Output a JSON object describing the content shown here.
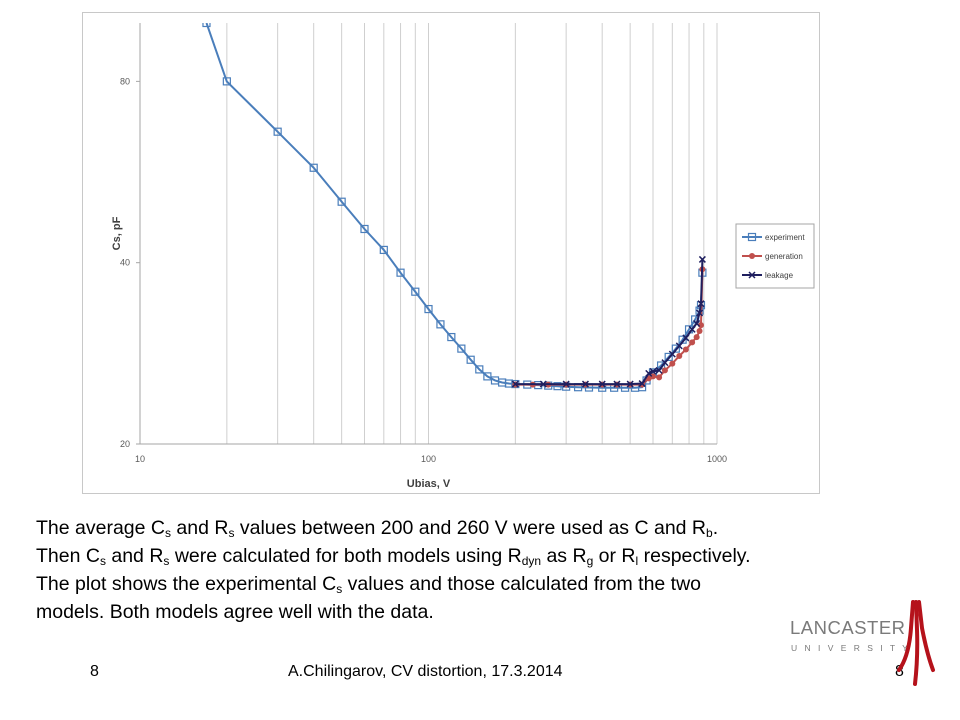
{
  "chart_data": {
    "type": "line",
    "xlabel": "Ubias, V",
    "ylabel": "Cs, pF",
    "xscale": "log",
    "yscale": "log",
    "xlim": [
      10,
      1000
    ],
    "ylim": [
      20,
      100
    ],
    "x_ticks": [
      "10",
      "100",
      "1000"
    ],
    "y_ticks": [
      "20",
      "40",
      "80"
    ],
    "grid": "vertical minor and major",
    "legend_position": "right",
    "series": [
      {
        "name": "experiment",
        "color": "#4a7ebb",
        "marker": "square-open",
        "x": [
          17,
          20,
          30,
          40,
          50,
          60,
          70,
          80,
          90,
          100,
          110,
          120,
          130,
          140,
          150,
          160,
          170,
          180,
          190,
          200,
          220,
          240,
          260,
          280,
          300,
          330,
          360,
          400,
          440,
          480,
          520,
          550,
          570,
          600,
          640,
          680,
          720,
          760,
          800,
          840,
          870,
          880,
          890
        ],
        "y": [
          100,
          80,
          66,
          57.5,
          50.5,
          45.5,
          42,
          38.5,
          35.8,
          33.5,
          31.6,
          30.1,
          28.8,
          27.6,
          26.6,
          25.9,
          25.5,
          25.3,
          25.2,
          25.15,
          25.1,
          25.05,
          25.0,
          24.95,
          24.9,
          24.85,
          24.82,
          24.8,
          24.8,
          24.8,
          24.8,
          24.85,
          25.5,
          26.3,
          27.0,
          27.9,
          28.8,
          29.8,
          31.0,
          32.2,
          33.3,
          34.0,
          38.5
        ]
      },
      {
        "name": "generation",
        "color": "#c0504d",
        "marker": "circle-filled",
        "x": [
          200,
          230,
          260,
          300,
          350,
          400,
          450,
          500,
          550,
          580,
          600,
          630,
          660,
          700,
          740,
          780,
          820,
          850,
          870,
          880,
          890
        ],
        "y": [
          25.1,
          25.1,
          25.1,
          25.1,
          25.1,
          25.1,
          25.1,
          25.1,
          25.1,
          25.7,
          25.9,
          25.8,
          26.5,
          27.2,
          28.0,
          28.7,
          29.5,
          30.1,
          30.8,
          31.5,
          39.0
        ]
      },
      {
        "name": "leakage",
        "color": "#1f1f5f",
        "marker": "x",
        "x": [
          200,
          250,
          300,
          350,
          400,
          450,
          500,
          550,
          580,
          600,
          630,
          660,
          700,
          740,
          780,
          820,
          850,
          870,
          880,
          890
        ],
        "y": [
          25.15,
          25.15,
          25.15,
          25.15,
          25.15,
          25.15,
          25.15,
          25.2,
          26.2,
          26.4,
          26.5,
          27.3,
          28.2,
          29.1,
          30.0,
          31.0,
          31.7,
          33.0,
          34.2,
          40.5
        ]
      }
    ]
  },
  "caption": {
    "line1": {
      "t1": "The average C",
      "s1": "s",
      "t2": " and R",
      "s2": "s",
      "t3": " values between 200 and 260 V were used as C and R",
      "s3": "b",
      "t4": "."
    },
    "line2": {
      "t1": "Then C",
      "s1": "s",
      "t2": " and R",
      "s2": "s",
      "t3": " were calculated for both models using R",
      "s3": "dyn",
      "t4": " as R",
      "s4": "g",
      "t5": " or R",
      "s5": "l",
      "t6": " respectively."
    },
    "line3": "The plot shows the experimental C",
    "line3_sub": "s",
    "line3_rest": " values and those calculated from the two",
    "line4": "models. Both models agree well with the data."
  },
  "footer": {
    "page_left": "8",
    "title": "A.Chilingarov, CV distortion, 17.3.2014",
    "page_right": "8"
  },
  "logo": {
    "line1": "LANCASTER",
    "line2": "U N I V E R S I T Y",
    "color": "#b5121b",
    "text_color": "#7a7a7a"
  }
}
